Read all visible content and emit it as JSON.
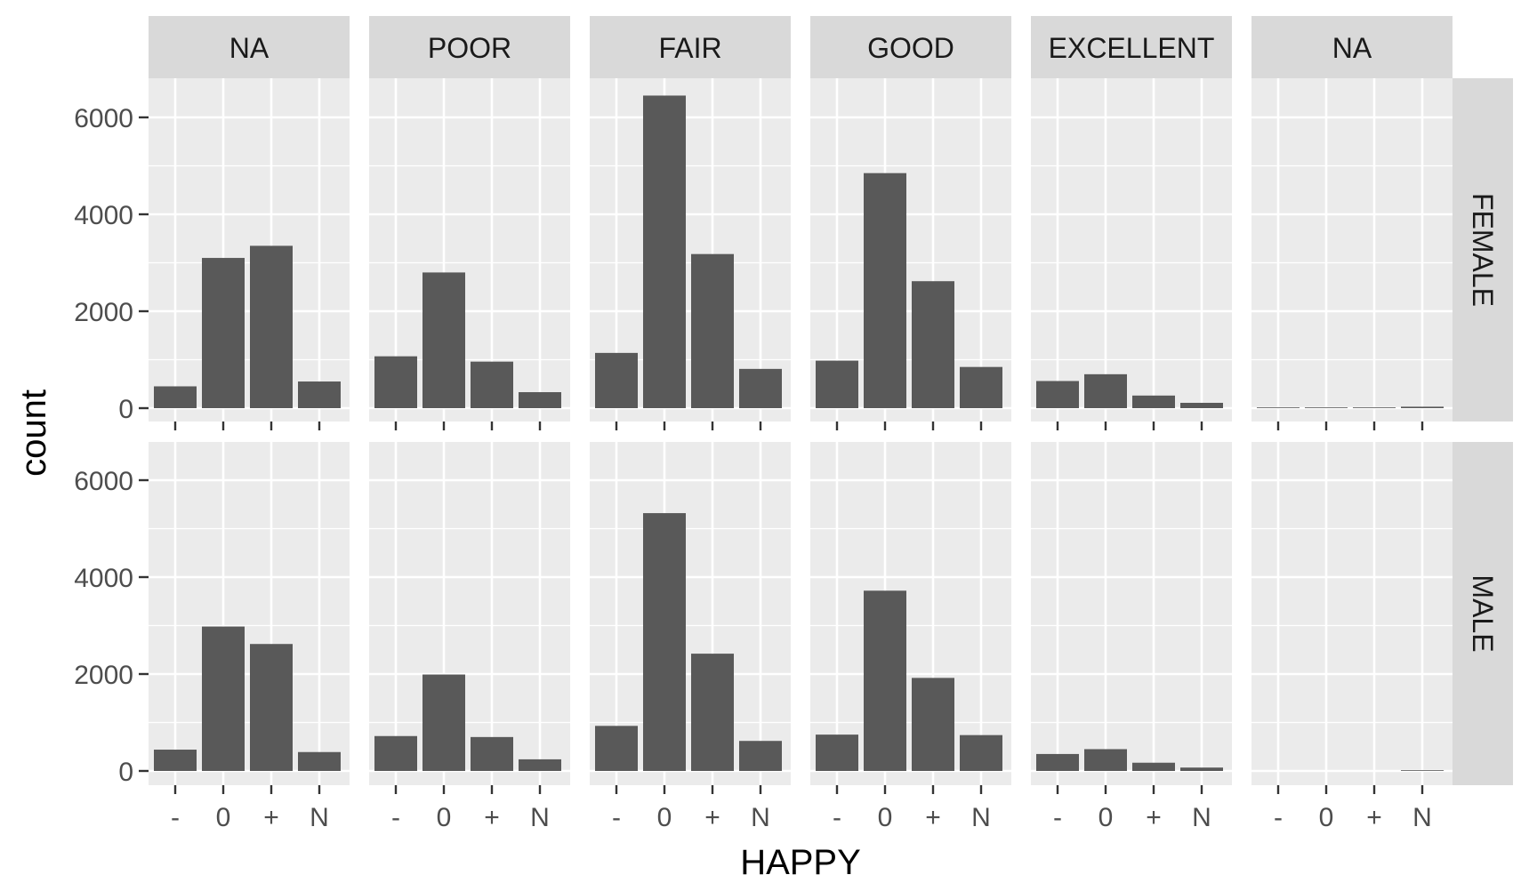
{
  "chart_data": {
    "type": "bar",
    "xlabel": "HAPPY",
    "ylabel": "count",
    "categories": [
      "-",
      "0",
      "+",
      "N"
    ],
    "ylim": [
      0,
      7000
    ],
    "yticks": [
      0,
      2000,
      4000,
      6000
    ],
    "grid": true,
    "column_facets": [
      "NA",
      "POOR",
      "FAIR",
      "GOOD",
      "EXCELLENT",
      "NA"
    ],
    "row_facets": [
      "FEMALE",
      "MALE"
    ],
    "bar_color": "#595959",
    "panel_background": "#ebebeb",
    "strip_background": "#d9d9d9",
    "panels": [
      {
        "row": "FEMALE",
        "column": "NA",
        "values": [
          450,
          3100,
          3350,
          550
        ]
      },
      {
        "row": "FEMALE",
        "column": "POOR",
        "values": [
          1070,
          2800,
          960,
          330
        ]
      },
      {
        "row": "FEMALE",
        "column": "FAIR",
        "values": [
          1140,
          6450,
          3180,
          810
        ]
      },
      {
        "row": "FEMALE",
        "column": "GOOD",
        "values": [
          980,
          4850,
          2620,
          850
        ]
      },
      {
        "row": "FEMALE",
        "column": "EXCELLENT",
        "values": [
          560,
          700,
          260,
          110
        ]
      },
      {
        "row": "FEMALE",
        "column": "NA",
        "values": [
          15,
          15,
          15,
          30
        ]
      },
      {
        "row": "MALE",
        "column": "NA",
        "values": [
          440,
          2980,
          2620,
          390
        ]
      },
      {
        "row": "MALE",
        "column": "POOR",
        "values": [
          720,
          1990,
          700,
          240
        ]
      },
      {
        "row": "MALE",
        "column": "FAIR",
        "values": [
          930,
          5320,
          2420,
          620
        ]
      },
      {
        "row": "MALE",
        "column": "GOOD",
        "values": [
          750,
          3720,
          1920,
          740
        ]
      },
      {
        "row": "MALE",
        "column": "EXCELLENT",
        "values": [
          350,
          450,
          170,
          70
        ]
      },
      {
        "row": "MALE",
        "column": "NA",
        "values": [
          0,
          0,
          0,
          15
        ]
      }
    ]
  }
}
